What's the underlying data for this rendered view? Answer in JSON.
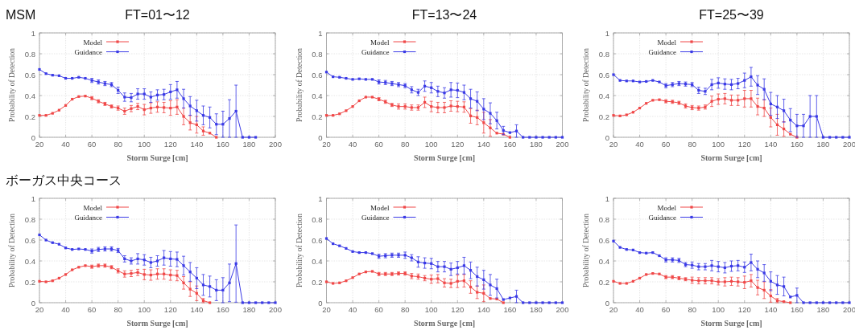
{
  "chart_data": [
    {
      "type": "line",
      "title": "FT=01〜12",
      "annotations": [
        "MSM"
      ],
      "xlabel": "Storm Surge [cm]",
      "ylabel": "Probability of Detection",
      "xlim": [
        20,
        200
      ],
      "xticks": [
        20,
        40,
        60,
        80,
        100,
        120,
        140,
        160,
        180,
        200
      ],
      "ylim": [
        0,
        1
      ],
      "yticks": [
        0,
        0.2,
        0.4,
        0.6,
        0.8,
        1
      ],
      "grid": true,
      "legend": "top left",
      "marker": "square",
      "line_style": "solid",
      "x": [
        20,
        25,
        30,
        35,
        40,
        45,
        50,
        55,
        60,
        65,
        70,
        75,
        80,
        85,
        90,
        95,
        100,
        105,
        110,
        115,
        120,
        125,
        130,
        135,
        140,
        145,
        150,
        155,
        160,
        165,
        170,
        175,
        180,
        185
      ],
      "series": [
        {
          "name": "Model",
          "color": "#f04848",
          "x": [
            20,
            25,
            30,
            35,
            40,
            45,
            50,
            55,
            60,
            65,
            70,
            75,
            80,
            85,
            90,
            95,
            100,
            105,
            110,
            115,
            120,
            125,
            130,
            135,
            140,
            145,
            150,
            155
          ],
          "values": [
            0.21,
            0.21,
            0.23,
            0.26,
            0.305,
            0.365,
            0.39,
            0.395,
            0.375,
            0.345,
            0.32,
            0.295,
            0.28,
            0.25,
            0.275,
            0.295,
            0.265,
            0.28,
            0.29,
            0.285,
            0.28,
            0.29,
            0.2,
            0.14,
            0.12,
            0.06,
            0.04,
            0
          ],
          "errors": [
            null,
            null,
            null,
            null,
            null,
            null,
            null,
            null,
            0.015,
            0.015,
            0.015,
            0.015,
            0.02,
            0.03,
            0.03,
            0.03,
            0.05,
            0.05,
            0.05,
            0.05,
            0.07,
            0.07,
            0.08,
            0.07,
            0.08,
            0.04,
            null,
            null
          ]
        },
        {
          "name": "Guidance",
          "color": "#3a3ae6",
          "values": [
            0.65,
            0.61,
            0.595,
            0.59,
            0.565,
            0.565,
            0.575,
            0.565,
            0.545,
            0.53,
            0.515,
            0.505,
            0.45,
            0.385,
            0.38,
            0.415,
            0.415,
            0.385,
            0.405,
            0.41,
            0.435,
            0.455,
            0.37,
            0.3,
            0.255,
            0.21,
            0.19,
            0.125,
            0.125,
            0.18,
            0.25,
            0,
            0,
            0
          ],
          "errors": [
            null,
            null,
            null,
            null,
            null,
            null,
            null,
            null,
            0.02,
            0.02,
            0.02,
            0.02,
            0.03,
            0.04,
            0.04,
            0.05,
            0.05,
            0.05,
            0.05,
            0.05,
            0.07,
            0.08,
            0.09,
            0.09,
            0.1,
            0.09,
            0.1,
            0.1,
            0.125,
            0.18,
            0.25,
            null,
            null,
            null
          ]
        }
      ]
    },
    {
      "type": "line",
      "title": "FT=13〜24",
      "xlabel": "Storm Surge [cm]",
      "ylabel": "Probability of Detection",
      "xlim": [
        20,
        200
      ],
      "xticks": [
        20,
        40,
        60,
        80,
        100,
        120,
        140,
        160,
        180,
        200
      ],
      "ylim": [
        0,
        1
      ],
      "yticks": [
        0,
        0.2,
        0.4,
        0.6,
        0.8,
        1
      ],
      "grid": true,
      "legend": "top left",
      "marker": "square",
      "line_style": "solid",
      "x": [
        20,
        25,
        30,
        35,
        40,
        45,
        50,
        55,
        60,
        65,
        70,
        75,
        80,
        85,
        90,
        95,
        100,
        105,
        110,
        115,
        120,
        125,
        130,
        135,
        140,
        145,
        150,
        155,
        160,
        165,
        170,
        175,
        180,
        185,
        190,
        195,
        200
      ],
      "series": [
        {
          "name": "Model",
          "color": "#f04848",
          "x": [
            20,
            25,
            30,
            35,
            40,
            45,
            50,
            55,
            60,
            65,
            70,
            75,
            80,
            85,
            90,
            95,
            100,
            105,
            110,
            115,
            120,
            125,
            130,
            135,
            140,
            145,
            150,
            155,
            160
          ],
          "values": [
            0.21,
            0.21,
            0.225,
            0.255,
            0.295,
            0.35,
            0.385,
            0.385,
            0.365,
            0.34,
            0.31,
            0.295,
            0.295,
            0.285,
            0.285,
            0.335,
            0.295,
            0.285,
            0.285,
            0.3,
            0.295,
            0.29,
            0.205,
            0.19,
            0.14,
            0.09,
            0.04,
            0.03,
            0
          ],
          "errors": [
            null,
            null,
            null,
            null,
            null,
            null,
            null,
            null,
            0.015,
            0.015,
            0.015,
            0.025,
            0.025,
            0.025,
            0.025,
            0.05,
            0.05,
            0.05,
            0.05,
            0.05,
            0.05,
            0.05,
            0.07,
            0.07,
            0.1,
            0.08,
            null,
            null,
            null
          ]
        },
        {
          "name": "Guidance",
          "color": "#3a3ae6",
          "values": [
            0.625,
            0.58,
            0.575,
            0.565,
            0.555,
            0.56,
            0.555,
            0.555,
            0.53,
            0.525,
            0.515,
            0.505,
            0.495,
            0.455,
            0.43,
            0.49,
            0.475,
            0.44,
            0.425,
            0.455,
            0.45,
            0.43,
            0.37,
            0.345,
            0.27,
            0.23,
            0.16,
            0.065,
            0.045,
            0.06,
            0,
            0,
            0,
            0,
            0,
            0,
            0
          ],
          "errors": [
            null,
            null,
            null,
            null,
            null,
            null,
            null,
            null,
            0.02,
            0.02,
            0.02,
            0.02,
            0.02,
            0.03,
            0.03,
            0.05,
            0.05,
            0.05,
            0.05,
            0.07,
            0.07,
            0.07,
            0.09,
            0.09,
            0.1,
            0.1,
            0.08,
            0.04,
            null,
            0.06,
            null,
            null,
            null,
            null,
            null,
            null,
            null
          ]
        }
      ]
    },
    {
      "type": "line",
      "title": "FT=25〜39",
      "xlabel": "Storm Surge [cm]",
      "ylabel": "Probability of Detection",
      "xlim": [
        20,
        200
      ],
      "xticks": [
        20,
        40,
        60,
        80,
        100,
        120,
        140,
        160,
        180,
        200
      ],
      "ylim": [
        0,
        1
      ],
      "yticks": [
        0,
        0.2,
        0.4,
        0.6,
        0.8,
        1
      ],
      "grid": true,
      "legend": "top left",
      "marker": "square",
      "line_style": "solid",
      "x": [
        20,
        25,
        30,
        35,
        40,
        45,
        50,
        55,
        60,
        65,
        70,
        75,
        80,
        85,
        90,
        95,
        100,
        105,
        110,
        115,
        120,
        125,
        130,
        135,
        140,
        145,
        150,
        155,
        160,
        165,
        170,
        175,
        180,
        185,
        190,
        195,
        200
      ],
      "series": [
        {
          "name": "Model",
          "color": "#f04848",
          "x": [
            20,
            25,
            30,
            35,
            40,
            45,
            50,
            55,
            60,
            65,
            70,
            75,
            80,
            85,
            90,
            95,
            100,
            105,
            110,
            115,
            120,
            125,
            130,
            135,
            140,
            145,
            150,
            155,
            160
          ],
          "values": [
            0.21,
            0.205,
            0.215,
            0.24,
            0.28,
            0.325,
            0.355,
            0.36,
            0.345,
            0.34,
            0.33,
            0.3,
            0.285,
            0.28,
            0.29,
            0.345,
            0.365,
            0.37,
            0.355,
            0.355,
            0.37,
            0.37,
            0.295,
            0.28,
            0.19,
            0.12,
            0.08,
            0.03,
            0
          ],
          "errors": [
            null,
            null,
            null,
            null,
            null,
            null,
            null,
            null,
            0.015,
            0.015,
            0.015,
            0.02,
            0.02,
            0.02,
            0.02,
            0.05,
            0.05,
            0.05,
            0.05,
            0.05,
            0.08,
            0.08,
            0.08,
            0.08,
            0.09,
            0.1,
            0.07,
            null,
            null
          ]
        },
        {
          "name": "Guidance",
          "color": "#3a3ae6",
          "values": [
            0.6,
            0.545,
            0.54,
            0.54,
            0.53,
            0.535,
            0.545,
            0.53,
            0.495,
            0.505,
            0.515,
            0.51,
            0.505,
            0.45,
            0.44,
            0.505,
            0.52,
            0.51,
            0.505,
            0.515,
            0.545,
            0.58,
            0.5,
            0.46,
            0.32,
            0.29,
            0.255,
            0.165,
            0.11,
            0.11,
            0.2,
            0.2,
            0,
            0,
            0,
            0,
            0
          ],
          "errors": [
            null,
            null,
            null,
            null,
            null,
            null,
            null,
            null,
            0.02,
            0.02,
            0.02,
            0.02,
            0.02,
            0.03,
            0.03,
            0.05,
            0.05,
            0.05,
            0.05,
            0.05,
            0.07,
            0.09,
            0.09,
            0.1,
            0.11,
            0.11,
            0.11,
            0.11,
            0.11,
            0.11,
            0.2,
            0.2,
            null,
            null,
            null,
            null,
            null
          ]
        }
      ]
    },
    {
      "type": "line",
      "annotations": [
        "ボーガス中央コース"
      ],
      "xlabel": "Storm Surge [cm]",
      "ylabel": "Probability of Detection",
      "xlim": [
        20,
        200
      ],
      "xticks": [
        20,
        40,
        60,
        80,
        100,
        120,
        140,
        160,
        180,
        200
      ],
      "ylim": [
        0,
        1
      ],
      "yticks": [
        0,
        0.2,
        0.4,
        0.6,
        0.8,
        1
      ],
      "grid": true,
      "legend": "top left",
      "marker": "square",
      "line_style": "solid",
      "x": [
        20,
        25,
        30,
        35,
        40,
        45,
        50,
        55,
        60,
        65,
        70,
        75,
        80,
        85,
        90,
        95,
        100,
        105,
        110,
        115,
        120,
        125,
        130,
        135,
        140,
        145,
        150,
        155,
        160,
        165,
        170,
        175,
        180,
        185,
        190,
        195,
        200
      ],
      "series": [
        {
          "name": "Model",
          "color": "#f04848",
          "x": [
            20,
            25,
            30,
            35,
            40,
            45,
            50,
            55,
            60,
            65,
            70,
            75,
            80,
            85,
            90,
            95,
            100,
            105,
            110,
            115,
            120,
            125,
            130,
            135,
            140,
            145,
            150
          ],
          "values": [
            0.205,
            0.2,
            0.21,
            0.235,
            0.27,
            0.315,
            0.34,
            0.355,
            0.345,
            0.355,
            0.355,
            0.34,
            0.305,
            0.275,
            0.28,
            0.29,
            0.27,
            0.265,
            0.275,
            0.275,
            0.265,
            0.26,
            0.19,
            0.13,
            0.09,
            0.02,
            0
          ],
          "errors": [
            null,
            null,
            null,
            null,
            null,
            null,
            null,
            null,
            0.015,
            0.015,
            0.015,
            0.015,
            0.02,
            0.03,
            0.03,
            0.03,
            0.05,
            0.05,
            0.05,
            0.05,
            0.05,
            0.05,
            0.06,
            0.07,
            0.07,
            0.02,
            null
          ]
        },
        {
          "name": "Guidance",
          "color": "#3a3ae6",
          "values": [
            0.65,
            0.6,
            0.575,
            0.56,
            0.525,
            0.51,
            0.515,
            0.51,
            0.495,
            0.51,
            0.515,
            0.515,
            0.5,
            0.42,
            0.4,
            0.42,
            0.41,
            0.385,
            0.4,
            0.43,
            0.42,
            0.415,
            0.355,
            0.295,
            0.235,
            0.17,
            0.155,
            0.12,
            0.12,
            0.19,
            0.375,
            0,
            0,
            0,
            0,
            0,
            0
          ],
          "errors": [
            null,
            null,
            null,
            null,
            null,
            null,
            null,
            null,
            0.02,
            0.02,
            0.02,
            0.02,
            0.02,
            0.03,
            0.03,
            0.05,
            0.05,
            0.05,
            0.05,
            0.07,
            0.07,
            0.07,
            0.09,
            0.09,
            0.1,
            0.1,
            0.1,
            0.1,
            0.12,
            0.18,
            0.37,
            null,
            null,
            null,
            null,
            null,
            null
          ]
        }
      ]
    },
    {
      "type": "line",
      "xlabel": "Storm Surge [cm]",
      "ylabel": "Probability of Detection",
      "xlim": [
        20,
        200
      ],
      "xticks": [
        20,
        40,
        60,
        80,
        100,
        120,
        140,
        160,
        180,
        200
      ],
      "ylim": [
        0,
        1
      ],
      "yticks": [
        0,
        0.2,
        0.4,
        0.6,
        0.8,
        1
      ],
      "grid": true,
      "legend": "top left",
      "marker": "square",
      "line_style": "solid",
      "x": [
        20,
        25,
        30,
        35,
        40,
        45,
        50,
        55,
        60,
        65,
        70,
        75,
        80,
        85,
        90,
        95,
        100,
        105,
        110,
        115,
        120,
        125,
        130,
        135,
        140,
        145,
        150,
        155,
        160,
        165,
        170,
        175,
        180,
        185,
        190,
        195,
        200
      ],
      "series": [
        {
          "name": "Model",
          "color": "#f04848",
          "x": [
            20,
            25,
            30,
            35,
            40,
            45,
            50,
            55,
            60,
            65,
            70,
            75,
            80,
            85,
            90,
            95,
            100,
            105,
            110,
            115,
            120,
            125,
            130,
            135,
            140,
            145,
            150,
            155
          ],
          "values": [
            0.2,
            0.185,
            0.19,
            0.21,
            0.24,
            0.275,
            0.295,
            0.3,
            0.275,
            0.275,
            0.275,
            0.28,
            0.28,
            0.255,
            0.25,
            0.235,
            0.225,
            0.23,
            0.19,
            0.185,
            0.205,
            0.21,
            0.15,
            0.1,
            0.09,
            0.04,
            0.035,
            0
          ],
          "errors": [
            null,
            null,
            null,
            null,
            null,
            null,
            null,
            null,
            0.015,
            0.015,
            0.015,
            0.015,
            0.015,
            0.025,
            0.025,
            0.025,
            0.04,
            0.04,
            0.04,
            0.04,
            0.06,
            0.06,
            0.06,
            0.06,
            0.08,
            null,
            null,
            null
          ]
        },
        {
          "name": "Guidance",
          "color": "#3a3ae6",
          "values": [
            0.615,
            0.565,
            0.545,
            0.52,
            0.49,
            0.48,
            0.48,
            0.47,
            0.445,
            0.45,
            0.455,
            0.455,
            0.455,
            0.43,
            0.39,
            0.38,
            0.375,
            0.345,
            0.345,
            0.32,
            0.335,
            0.355,
            0.31,
            0.25,
            0.22,
            0.17,
            0.135,
            0.03,
            0.045,
            0.06,
            0,
            0,
            0,
            0,
            0,
            0,
            0
          ],
          "errors": [
            null,
            null,
            null,
            null,
            null,
            null,
            null,
            null,
            0.02,
            0.02,
            0.02,
            0.02,
            0.03,
            0.03,
            0.05,
            0.05,
            0.05,
            0.05,
            0.05,
            0.06,
            0.06,
            0.08,
            0.08,
            0.09,
            0.09,
            0.1,
            0.09,
            null,
            null,
            0.06,
            null,
            null,
            null,
            null,
            null,
            null,
            null
          ]
        }
      ]
    },
    {
      "type": "line",
      "xlabel": "Storm Surge [cm]",
      "ylabel": "Probability of Detection",
      "xlim": [
        20,
        200
      ],
      "xticks": [
        20,
        40,
        60,
        80,
        100,
        120,
        140,
        160,
        180,
        200
      ],
      "ylim": [
        0,
        1
      ],
      "yticks": [
        0,
        0.2,
        0.4,
        0.6,
        0.8,
        1
      ],
      "grid": true,
      "legend": "top left",
      "marker": "square",
      "line_style": "solid",
      "x": [
        20,
        25,
        30,
        35,
        40,
        45,
        50,
        55,
        60,
        65,
        70,
        75,
        80,
        85,
        90,
        95,
        100,
        105,
        110,
        115,
        120,
        125,
        130,
        135,
        140,
        145,
        150,
        155,
        160,
        165,
        170,
        175,
        180,
        185,
        190,
        195,
        200
      ],
      "series": [
        {
          "name": "Model",
          "color": "#f04848",
          "x": [
            20,
            25,
            30,
            35,
            40,
            45,
            50,
            55,
            60,
            65,
            70,
            75,
            80,
            85,
            90,
            95,
            100,
            105,
            110,
            115,
            120,
            125,
            130,
            135,
            140,
            145,
            150,
            155
          ],
          "values": [
            0.205,
            0.185,
            0.185,
            0.205,
            0.235,
            0.27,
            0.28,
            0.275,
            0.245,
            0.245,
            0.235,
            0.225,
            0.215,
            0.21,
            0.21,
            0.21,
            0.2,
            0.2,
            0.205,
            0.2,
            0.195,
            0.21,
            0.145,
            0.12,
            0.065,
            0.02,
            0.01,
            0
          ],
          "errors": [
            null,
            null,
            null,
            null,
            null,
            null,
            null,
            null,
            0.015,
            0.015,
            0.015,
            0.015,
            0.03,
            0.03,
            0.03,
            0.03,
            0.03,
            0.04,
            0.04,
            0.04,
            0.06,
            0.06,
            0.07,
            0.08,
            0.06,
            0.02,
            null,
            null
          ]
        },
        {
          "name": "Guidance",
          "color": "#3a3ae6",
          "values": [
            0.59,
            0.53,
            0.51,
            0.505,
            0.48,
            0.475,
            0.48,
            0.45,
            0.41,
            0.41,
            0.405,
            0.365,
            0.36,
            0.345,
            0.345,
            0.355,
            0.345,
            0.335,
            0.35,
            0.355,
            0.34,
            0.385,
            0.32,
            0.285,
            0.205,
            0.17,
            0.155,
            0.055,
            0.07,
            0,
            0,
            0,
            0,
            0,
            0,
            0,
            0
          ],
          "errors": [
            null,
            null,
            null,
            null,
            null,
            null,
            null,
            null,
            0.02,
            0.02,
            0.02,
            0.02,
            0.03,
            0.03,
            0.03,
            0.05,
            0.05,
            0.05,
            0.05,
            0.05,
            0.05,
            0.08,
            0.08,
            0.08,
            0.09,
            0.09,
            0.09,
            null,
            0.07,
            null,
            null,
            null,
            null,
            null,
            null,
            null,
            null
          ]
        }
      ]
    }
  ]
}
